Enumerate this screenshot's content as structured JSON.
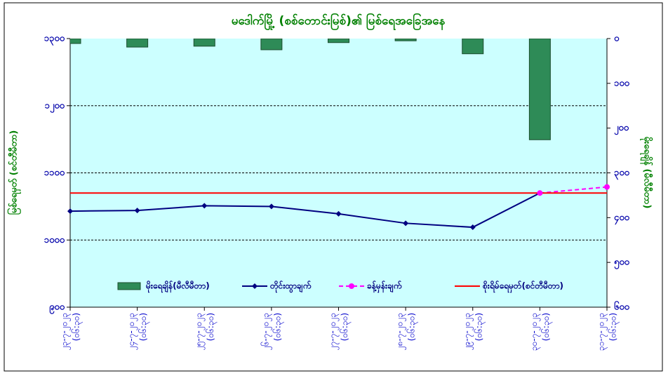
{
  "chart_data": {
    "type": "combo",
    "title": "မဒေါက်မြို့ (စစ်တောင်းမြစ်)၏ မြစ်ရေအခြေအနေ",
    "y_label": "မြစ်ရေမှတ် (စင်တီမီတာ)",
    "y2_label": "မိုးရေချိန် (မီလီမီတာ)",
    "categories": [
      [
        "၂၃-၇-၂၀၂၃",
        "(၀၆:၃၀)"
      ],
      [
        "၂၄-၇-၂၀၂၃",
        "(၀၆:၃၀)"
      ],
      [
        "၂၅-၇-၂၀၂၃",
        "(၀၆:၃၀)"
      ],
      [
        "၂၆-၇-၂၀၂၃",
        "(၀၆:၃၀)"
      ],
      [
        "၂၇-၇-၂၀၂၃",
        "(၀၆:၃၀)"
      ],
      [
        "၂၈-၇-၂၀၂၃",
        "(၀၆:၃၀)"
      ],
      [
        "၂၉-၇-၂၀၂၃",
        "(၀၆:၃၀)"
      ],
      [
        "၃၀-၇-၂၀၂၃",
        "(၀၆:၃၀)"
      ],
      [
        "၃၁-၇-၂၀၂၃",
        "(၀၆:၃၀)"
      ]
    ],
    "ylim": [
      900,
      1300
    ],
    "yticks": [
      {
        "value": 900,
        "label": "၉၀၀"
      },
      {
        "value": 1000,
        "label": "၁၀၀၀"
      },
      {
        "value": 1100,
        "label": "၁၁၀၀"
      },
      {
        "value": 1200,
        "label": "၁၂၀၀"
      },
      {
        "value": 1300,
        "label": "၁၃၀၀"
      }
    ],
    "y2lim": [
      0,
      600
    ],
    "y2_inverted": true,
    "y2ticks": [
      {
        "value": 0,
        "label": "၀"
      },
      {
        "value": 100,
        "label": "၁၀၀"
      },
      {
        "value": 200,
        "label": "၂၀၀"
      },
      {
        "value": 300,
        "label": "၃၀၀"
      },
      {
        "value": 400,
        "label": "၄၀၀"
      },
      {
        "value": 500,
        "label": "၅၀၀"
      },
      {
        "value": 600,
        "label": "၆၀၀"
      }
    ],
    "grid": true,
    "series": [
      {
        "name": "မိုးရေချိန်(မီလီမီတာ)",
        "kind": "bar",
        "axis": "y2",
        "color": "#2e8b57",
        "values": [
          11,
          19,
          17,
          25,
          9,
          5,
          34,
          226,
          null
        ]
      },
      {
        "name": "တိုင်းထွာချက်",
        "kind": "line",
        "marker": "diamond",
        "color": "#000080",
        "values": [
          1043,
          1044,
          1051,
          1050,
          1039,
          1025,
          1019,
          1070,
          null
        ]
      },
      {
        "name": "ခန့်မှန်းချက်",
        "kind": "line",
        "marker": "circle",
        "dashed": true,
        "color": "#ff00ff",
        "values": [
          null,
          null,
          null,
          null,
          null,
          null,
          null,
          1070,
          1079
        ]
      },
      {
        "name": "စိုးရိမ်ရေမှတ်(စင်တီမီတာ)",
        "kind": "line",
        "color": "#ff0000",
        "values": [
          1070,
          1070,
          1070,
          1070,
          1070,
          1070,
          1070,
          1070,
          1070
        ]
      }
    ]
  }
}
